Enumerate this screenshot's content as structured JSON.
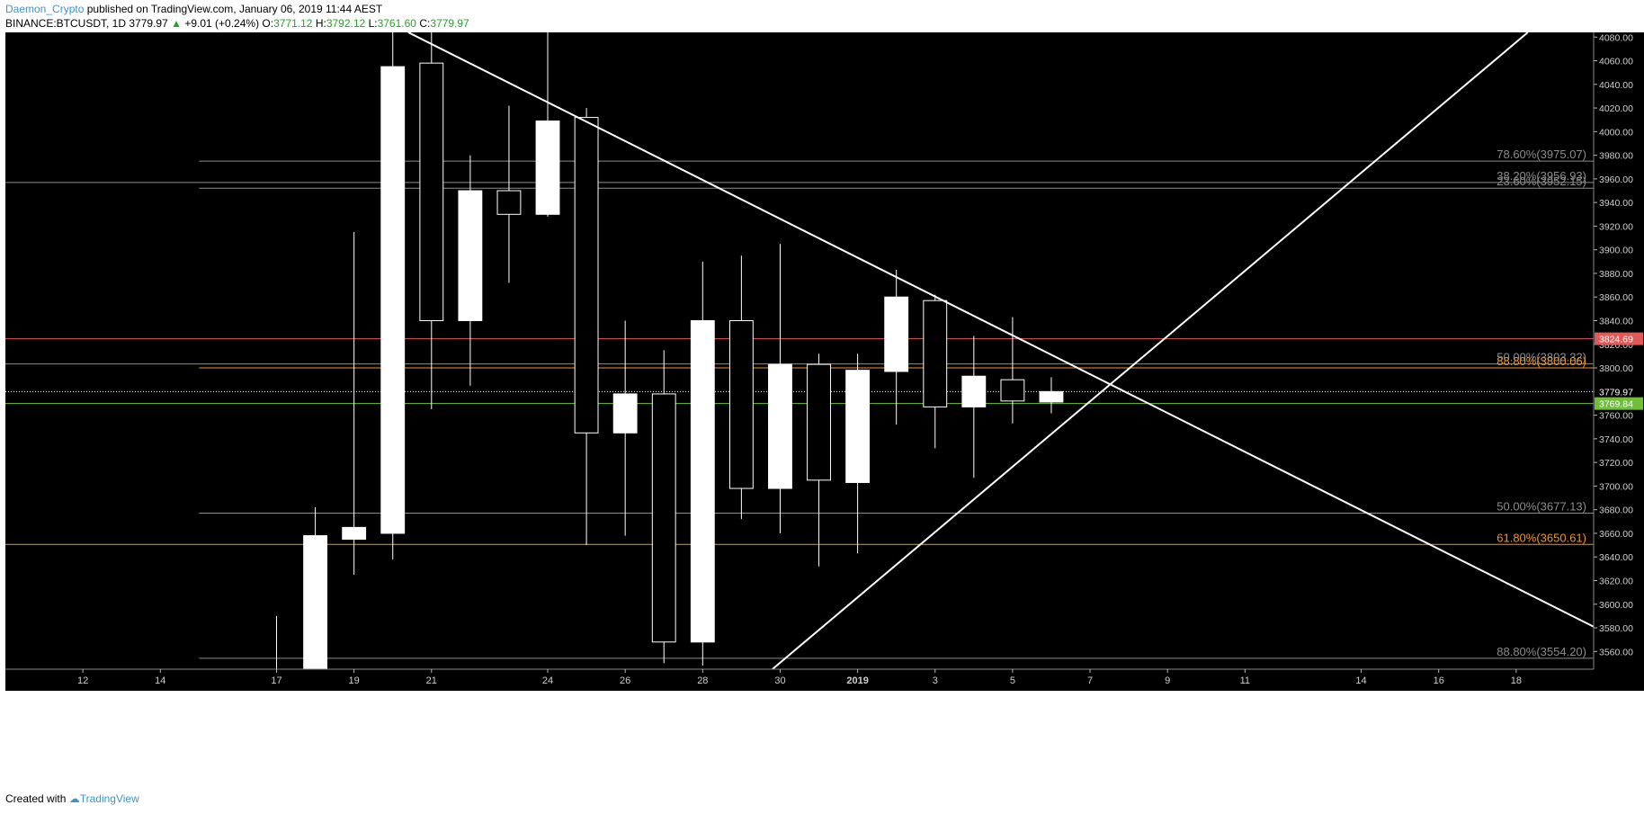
{
  "header": {
    "author": "Daemon_Crypto",
    "published_text": "published on TradingView.com, January 06, 2019 11:44 AEST",
    "symbol_text": "BINANCE:BTCUSDT, 1D",
    "last_price": "3779.97",
    "change_arrow": "▲",
    "change_text": "+9.01 (+0.24%)",
    "open_label": "O:",
    "open_value": "3771.12",
    "high_label": "H:",
    "high_value": "3792.12",
    "low_label": "L:",
    "low_value": "3761.60",
    "close_label": "C:",
    "close_value": "3779.97"
  },
  "footer": {
    "created_with": "Created with",
    "brand": "TradingView"
  },
  "colors": {
    "background": "#000000",
    "candle": "#ffffff",
    "red_line": "#e05a5a",
    "green_line": "#6fbf3a",
    "orange_line": "#f0932b",
    "gray_line": "#8c8c8c"
  },
  "chart_data": {
    "type": "candlestick",
    "y_axis": {
      "min": 3545,
      "max": 4084,
      "ticks": [
        3560,
        3580,
        3600,
        3620,
        3640,
        3660,
        3680,
        3700,
        3720,
        3740,
        3760,
        3780,
        3800,
        3820,
        3840,
        3860,
        3880,
        3900,
        3920,
        3940,
        3960,
        3980,
        4000,
        4020,
        4040,
        4060,
        4080
      ],
      "tick_labels": [
        "3560.00",
        "3580.00",
        "3600.00",
        "3620.00",
        "3640.00",
        "3660.00",
        "3680.00",
        "3700.00",
        "3720.00",
        "3740.00",
        "3760.00",
        "3780.00",
        "3800.00",
        "3820.00",
        "3840.00",
        "3860.00",
        "3880.00",
        "3900.00",
        "3920.00",
        "3940.00",
        "3960.00",
        "3980.00",
        "4000.00",
        "4020.00",
        "4040.00",
        "4060.00",
        "4080.00"
      ]
    },
    "x_axis": {
      "start_day": 10,
      "end_day": 51,
      "ticks": [
        {
          "day": 12,
          "label": "12"
        },
        {
          "day": 14,
          "label": "14"
        },
        {
          "day": 17,
          "label": "17"
        },
        {
          "day": 19,
          "label": "19"
        },
        {
          "day": 21,
          "label": "21"
        },
        {
          "day": 24,
          "label": "24"
        },
        {
          "day": 26,
          "label": "26"
        },
        {
          "day": 28,
          "label": "28"
        },
        {
          "day": 30,
          "label": "30"
        },
        {
          "day": 32,
          "label": "2019"
        },
        {
          "day": 34,
          "label": "3"
        },
        {
          "day": 36,
          "label": "5"
        },
        {
          "day": 38,
          "label": "7"
        },
        {
          "day": 40,
          "label": "9"
        },
        {
          "day": 42,
          "label": "11"
        },
        {
          "day": 45,
          "label": "14"
        },
        {
          "day": 47,
          "label": "16"
        },
        {
          "day": 49,
          "label": "18"
        }
      ]
    },
    "candles": [
      {
        "day": 17,
        "open": 3540,
        "high": 3590,
        "low": 3530,
        "close": 3545
      },
      {
        "day": 18,
        "open": 3545,
        "high": 3682,
        "low": 3540,
        "close": 3658
      },
      {
        "day": 19,
        "open": 3655,
        "high": 3915,
        "low": 3625,
        "close": 3665
      },
      {
        "day": 20,
        "open": 3660,
        "high": 4095,
        "low": 3638,
        "close": 4055
      },
      {
        "day": 21,
        "open": 4058,
        "high": 4090,
        "low": 3765,
        "close": 3840
      },
      {
        "day": 22,
        "open": 3840,
        "high": 3980,
        "low": 3785,
        "close": 3950
      },
      {
        "day": 23,
        "open": 3950,
        "high": 4022,
        "low": 3872,
        "close": 3930
      },
      {
        "day": 24,
        "open": 3930,
        "high": 4085,
        "low": 3928,
        "close": 4009
      },
      {
        "day": 25,
        "open": 4012,
        "high": 4020,
        "low": 3650,
        "close": 3745
      },
      {
        "day": 26,
        "open": 3745,
        "high": 3840,
        "low": 3658,
        "close": 3778
      },
      {
        "day": 27,
        "open": 3778,
        "high": 3815,
        "low": 3550,
        "close": 3568
      },
      {
        "day": 28,
        "open": 3568,
        "high": 3890,
        "low": 3548,
        "close": 3840
      },
      {
        "day": 29,
        "open": 3840,
        "high": 3895,
        "low": 3672,
        "close": 3698
      },
      {
        "day": 30,
        "open": 3698,
        "high": 3905,
        "low": 3660,
        "close": 3803
      },
      {
        "day": 31,
        "open": 3803,
        "high": 3812,
        "low": 3632,
        "close": 3705
      },
      {
        "day": 32,
        "open": 3703,
        "high": 3812,
        "low": 3643,
        "close": 3798
      },
      {
        "day": 33,
        "open": 3797,
        "high": 3883,
        "low": 3752,
        "close": 3860
      },
      {
        "day": 34,
        "open": 3857,
        "high": 3862,
        "low": 3732,
        "close": 3767
      },
      {
        "day": 35,
        "open": 3767,
        "high": 3827,
        "low": 3707,
        "close": 3793
      },
      {
        "day": 36,
        "open": 3790,
        "high": 3843,
        "low": 3753,
        "close": 3772
      },
      {
        "day": 37,
        "open": 3771.12,
        "high": 3792.12,
        "low": 3761.6,
        "close": 3779.97
      }
    ],
    "horizontal_lines": [
      {
        "value": 3975.07,
        "from_day": 15,
        "color": "#8c8c8c",
        "label": "78.60%(3975.07)"
      },
      {
        "value": 3956.93,
        "from_day": 10,
        "color": "#8c8c8c",
        "label": "38.20%(3956.93)"
      },
      {
        "value": 3952.15,
        "from_day": 15,
        "color": "#8c8c8c",
        "label": "23.60%(3952.15)"
      },
      {
        "value": 3824.69,
        "from_day": 10,
        "color": "#e05a5a",
        "label": ""
      },
      {
        "value": 3803.32,
        "from_day": 10,
        "color": "#8c8c8c",
        "label": "50.00%(3803.32)"
      },
      {
        "value": 3800.06,
        "from_day": 15,
        "color": "#f0932b",
        "label": "88.80%(3800.06)"
      },
      {
        "value": 3779.97,
        "from_day": 10,
        "color": "#ffffff",
        "dotted": true,
        "label": ""
      },
      {
        "value": 3769.84,
        "from_day": 10,
        "color": "#6fbf3a",
        "label": ""
      },
      {
        "value": 3677.13,
        "from_day": 15,
        "color": "#8c8c8c",
        "label": "50.00%(3677.13)"
      },
      {
        "value": 3650.61,
        "from_day": 10,
        "color": "#f0932b",
        "label": "61.80%(3650.61)"
      },
      {
        "value": 3554.2,
        "from_day": 15,
        "color": "#8c8c8c",
        "label": "88.80%(3554.20)"
      }
    ],
    "price_badges": [
      {
        "value": 3824.69,
        "label": "3824.69",
        "color": "#e05a5a"
      },
      {
        "value": 3779.97,
        "label": "3779.97",
        "color": "#ffffff"
      },
      {
        "value": 3769.84,
        "label": "3769.84",
        "color": "#6fbf3a"
      }
    ],
    "trendlines": [
      {
        "from": {
          "day": 20.4,
          "value": 4084
        },
        "to": {
          "day": 51,
          "value": 3581
        }
      },
      {
        "from": {
          "day": 29.8,
          "value": 3545
        },
        "to": {
          "day": 49.3,
          "value": 4084
        }
      }
    ]
  }
}
